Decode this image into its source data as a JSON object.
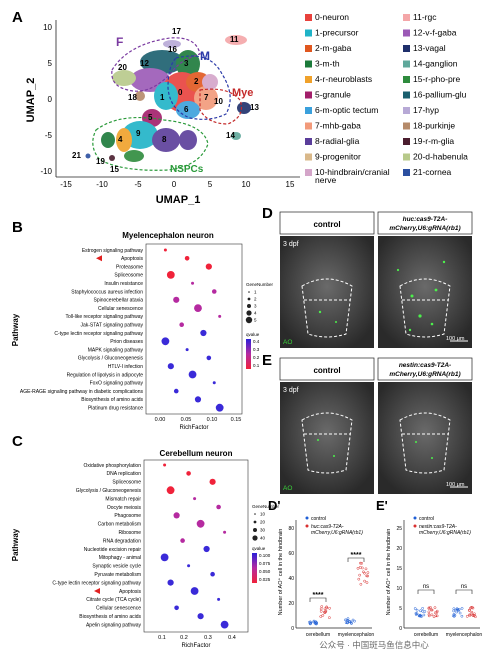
{
  "panels": {
    "A": {
      "letter": "A",
      "x_label": "UMAP_1",
      "y_label": "UMAP_2",
      "x_ticks": [
        "-15",
        "-10",
        "-5",
        "0",
        "5",
        "10",
        "15"
      ],
      "y_ticks": [
        "10",
        "5",
        "0",
        "-5",
        "-10"
      ],
      "region_labels": {
        "F": "F",
        "M": "M",
        "Mye": "Mye",
        "NSPCs": "NSPCs"
      },
      "cluster_numbers": [
        {
          "n": "0"
        },
        {
          "n": "1"
        },
        {
          "n": "2"
        },
        {
          "n": "3"
        },
        {
          "n": "4"
        },
        {
          "n": "5"
        },
        {
          "n": "6"
        },
        {
          "n": "7"
        },
        {
          "n": "8"
        },
        {
          "n": "9"
        },
        {
          "n": "10"
        },
        {
          "n": "11"
        },
        {
          "n": "12"
        },
        {
          "n": "13"
        },
        {
          "n": "14"
        },
        {
          "n": "15"
        },
        {
          "n": "16"
        },
        {
          "n": "17"
        },
        {
          "n": "18"
        },
        {
          "n": "19"
        },
        {
          "n": "20"
        },
        {
          "n": "21"
        }
      ],
      "legend": [
        {
          "label": "0-neuron",
          "color": "#e8413c"
        },
        {
          "label": "1-precursor",
          "color": "#1fb3c7"
        },
        {
          "label": "2-m-gaba",
          "color": "#e0571f"
        },
        {
          "label": "3-m-th",
          "color": "#1b7a3a"
        },
        {
          "label": "4-r-neuroblasts",
          "color": "#f0a12a"
        },
        {
          "label": "5-granule",
          "color": "#a21e6a"
        },
        {
          "label": "6-m-optic tectum",
          "color": "#3aa0dc"
        },
        {
          "label": "7-mhb-gaba",
          "color": "#f29a7a"
        },
        {
          "label": "8-radial-glia",
          "color": "#5a3d9a"
        },
        {
          "label": "9-progenitor",
          "color": "#d9b88a"
        },
        {
          "label": "10-hindbrain/cranial nerve",
          "color": "#d4a5c9"
        },
        {
          "label": "11-rgc",
          "color": "#f4a6a8"
        },
        {
          "label": "12-v-f-gaba",
          "color": "#9b59b6"
        },
        {
          "label": "13-vagal",
          "color": "#1e2f6b"
        },
        {
          "label": "14-ganglion",
          "color": "#5fa89b"
        },
        {
          "label": "15-r-pho-pre",
          "color": "#2e8b3d"
        },
        {
          "label": "16-pallium-glu",
          "color": "#1a5f6e"
        },
        {
          "label": "17-hyp",
          "color": "#b7a9d6"
        },
        {
          "label": "18-purkinje",
          "color": "#b58a6a"
        },
        {
          "label": "19-r-m-glia",
          "color": "#4a1d2e"
        },
        {
          "label": "20-d-habenula",
          "color": "#b7c98a"
        },
        {
          "label": "21-cornea",
          "color": "#2b4fa0"
        }
      ]
    },
    "B": {
      "letter": "B",
      "title": "Myelencephalon neuron",
      "y_label": "Pathway",
      "x_label": "RichFactor",
      "x_ticks": [
        "0.00",
        "0.05",
        "0.10",
        "0.15"
      ],
      "size_legend_title": "GeneNumber",
      "size_legend": [
        "1",
        "2",
        "3",
        "4",
        "5"
      ],
      "color_legend_title": "qvalue",
      "color_legend_ticks": [
        "0.4",
        "0.3",
        "0.2",
        "0.1"
      ],
      "pathways": [
        {
          "name": "Estrogen signaling pathway",
          "highlight": false
        },
        {
          "name": "Apoptosis",
          "highlight": true
        },
        {
          "name": "Proteasome",
          "highlight": false
        },
        {
          "name": "Spliceosome",
          "highlight": false
        },
        {
          "name": "Insulin resistance",
          "highlight": false
        },
        {
          "name": "Staphylococcus aureus infection",
          "highlight": false
        },
        {
          "name": "Spinocerebellar ataxia",
          "highlight": false
        },
        {
          "name": "Cellular senescence",
          "highlight": false
        },
        {
          "name": "Toll-like receptor signaling pathway",
          "highlight": false
        },
        {
          "name": "Jak-STAT signaling pathway",
          "highlight": false
        },
        {
          "name": "C-type lectin receptor signaling pathway",
          "highlight": false
        },
        {
          "name": "Prion diseases",
          "highlight": false
        },
        {
          "name": "MAPK signaling pathway",
          "highlight": false
        },
        {
          "name": "Glycolysis / Gluconeogenesis",
          "highlight": false
        },
        {
          "name": "HTLV-I infection",
          "highlight": false
        },
        {
          "name": "Regulation of lipolysis in adipocyte",
          "highlight": false
        },
        {
          "name": "FoxO signaling pathway",
          "highlight": false
        },
        {
          "name": "AGE-RAGE signaling pathway in diabetic complications",
          "highlight": false
        },
        {
          "name": "Biosynthesis of amino acids",
          "highlight": false
        },
        {
          "name": "Platinum drug resistance",
          "highlight": false
        }
      ]
    },
    "C": {
      "letter": "C",
      "title": "Cerebellum neuron",
      "y_label": "Pathway",
      "x_label": "RichFactor",
      "x_ticks": [
        "0.1",
        "0.2",
        "0.3",
        "0.4"
      ],
      "size_legend_title": "GeneNumber",
      "size_legend": [
        "10",
        "20",
        "30",
        "40"
      ],
      "color_legend_title": "qvalue",
      "color_legend_ticks": [
        "0.100",
        "0.075",
        "0.050",
        "0.025"
      ],
      "pathways": [
        {
          "name": "Oxidative phosphorylation",
          "highlight": false
        },
        {
          "name": "DNA replication",
          "highlight": false
        },
        {
          "name": "Spliceosome",
          "highlight": false
        },
        {
          "name": "Glycolysis / Gluconeogenesis",
          "highlight": false
        },
        {
          "name": "Mismatch repair",
          "highlight": false
        },
        {
          "name": "Oocyte meiosis",
          "highlight": false
        },
        {
          "name": "Phagosome",
          "highlight": false
        },
        {
          "name": "Carbon metabolism",
          "highlight": false
        },
        {
          "name": "Ribosome",
          "highlight": false
        },
        {
          "name": "RNA degradation",
          "highlight": false
        },
        {
          "name": "Nucleotide excision repair",
          "highlight": false
        },
        {
          "name": "Mitophagy - animal",
          "highlight": false
        },
        {
          "name": "Synaptic vesicle cycle",
          "highlight": false
        },
        {
          "name": "Pyruvate metabolism",
          "highlight": false
        },
        {
          "name": "C-type lectin receptor signaling pathway",
          "highlight": false
        },
        {
          "name": "Apoptosis",
          "highlight": true
        },
        {
          "name": "Citrate cycle (TCA cycle)",
          "highlight": false
        },
        {
          "name": "Cellular senescence",
          "highlight": false
        },
        {
          "name": "Biosynthesis of amino acids",
          "highlight": false
        },
        {
          "name": "Apelin signaling pathway",
          "highlight": false
        }
      ]
    },
    "D": {
      "letter": "D",
      "control_label": "control",
      "treat_label_1": "huc:cas9-T2A-",
      "treat_label_2": "mCherry,U6:gRNA(rb1)",
      "age": "3 dpf",
      "stain": "AO",
      "scale": "100 μm"
    },
    "E": {
      "letter": "E",
      "control_label": "control",
      "treat_label_1": "nestin:cas9-T2A-",
      "treat_label_2": "mCherry,U6:gRNA(rb1)",
      "age": "3 dpf",
      "stain": "AO",
      "scale": "100 μm"
    },
    "Dp": {
      "letter": "D'",
      "y_label": "Number of AO⁺ cell in the hindbrain",
      "y_ticks": [
        "0",
        "20",
        "40",
        "60",
        "80"
      ],
      "legend_control": "control",
      "legend_treat_1": "huc:cas9-T2A-",
      "legend_treat_2": "mCherry,U6:gRNA(rb1)",
      "categories": [
        "cerebellum",
        "myelencephalon"
      ],
      "sig_1": "****",
      "sig_2": "****"
    },
    "Ep": {
      "letter": "E'",
      "y_label": "Number of AO⁺ cell in the hindbrain",
      "y_ticks": [
        "0",
        "5",
        "10",
        "15",
        "20",
        "25"
      ],
      "legend_control": "control",
      "legend_treat_1": "nestin:cas9-T2A-",
      "legend_treat_2": "mCherry,U6:gRNA(rb1)",
      "categories": [
        "cerebellum",
        "myelencephalon"
      ],
      "sig_1": "ns",
      "sig_2": "ns"
    }
  },
  "watermark": "公众号 · 中国斑马鱼信息中心",
  "colors": {
    "control_points": "#1f5fd6",
    "treat_points": "#d93030",
    "q_high": "#2b1fd8",
    "q_low": "#f0223a"
  }
}
